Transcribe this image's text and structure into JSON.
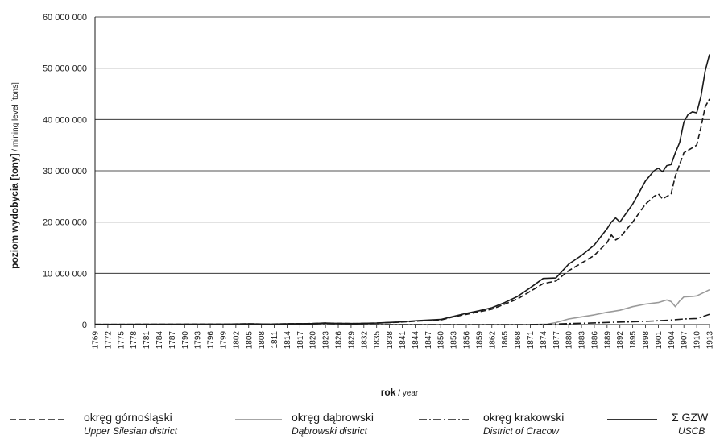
{
  "chart_data": {
    "type": "line",
    "title": "",
    "ylabel_main": "poziom wydobycia [tony]",
    "ylabel_sub": " / mining level [tons]",
    "xlabel_main": "rok",
    "xlabel_sub": " / year",
    "ylim": [
      0,
      60000000
    ],
    "y_ticks": [
      0,
      10000000,
      20000000,
      30000000,
      40000000,
      50000000,
      60000000
    ],
    "y_tick_labels": [
      "0",
      "10 000 000",
      "20 000 000",
      "30 000 000",
      "40 000 000",
      "50 000 000",
      "60 000 000"
    ],
    "x_range": [
      1769,
      1913
    ],
    "x_ticks": [
      1769,
      1772,
      1775,
      1778,
      1781,
      1784,
      1787,
      1790,
      1793,
      1796,
      1799,
      1802,
      1805,
      1808,
      1811,
      1814,
      1817,
      1820,
      1823,
      1826,
      1829,
      1832,
      1835,
      1838,
      1841,
      1844,
      1847,
      1850,
      1853,
      1856,
      1859,
      1862,
      1865,
      1868,
      1871,
      1874,
      1877,
      1880,
      1883,
      1886,
      1889,
      1892,
      1895,
      1898,
      1901,
      1904,
      1907,
      1910,
      1913
    ],
    "grid": "horizontal",
    "legend_position": "bottom",
    "series": [
      {
        "name": "okręg górnośląski",
        "name_en": "Upper Silesian district",
        "style": "dashed",
        "color": "#1a1a1a",
        "points": [
          [
            1769,
            50000
          ],
          [
            1800,
            100000
          ],
          [
            1805,
            150000
          ],
          [
            1810,
            100000
          ],
          [
            1815,
            180000
          ],
          [
            1820,
            200000
          ],
          [
            1823,
            300000
          ],
          [
            1825,
            250000
          ],
          [
            1830,
            200000
          ],
          [
            1835,
            300000
          ],
          [
            1840,
            450000
          ],
          [
            1845,
            700000
          ],
          [
            1850,
            900000
          ],
          [
            1853,
            1500000
          ],
          [
            1856,
            2000000
          ],
          [
            1859,
            2500000
          ],
          [
            1862,
            3000000
          ],
          [
            1865,
            4000000
          ],
          [
            1868,
            5000000
          ],
          [
            1871,
            6500000
          ],
          [
            1874,
            8000000
          ],
          [
            1877,
            8500000
          ],
          [
            1880,
            10500000
          ],
          [
            1883,
            12000000
          ],
          [
            1886,
            13500000
          ],
          [
            1889,
            16000000
          ],
          [
            1890,
            17500000
          ],
          [
            1891,
            16500000
          ],
          [
            1892,
            17000000
          ],
          [
            1895,
            20000000
          ],
          [
            1898,
            23500000
          ],
          [
            1900,
            25000000
          ],
          [
            1901,
            25500000
          ],
          [
            1902,
            24500000
          ],
          [
            1904,
            25500000
          ],
          [
            1905,
            29000000
          ],
          [
            1907,
            33500000
          ],
          [
            1909,
            34500000
          ],
          [
            1910,
            35000000
          ],
          [
            1911,
            38500000
          ],
          [
            1912,
            42500000
          ],
          [
            1913,
            44000000
          ]
        ]
      },
      {
        "name": "okręg dąbrowski",
        "name_en": "Dąbrowski district",
        "style": "solid",
        "color": "#9a9a9a",
        "points": [
          [
            1769,
            0
          ],
          [
            1870,
            0
          ],
          [
            1875,
            100000
          ],
          [
            1877,
            400000
          ],
          [
            1880,
            1100000
          ],
          [
            1883,
            1500000
          ],
          [
            1886,
            1900000
          ],
          [
            1889,
            2400000
          ],
          [
            1892,
            2800000
          ],
          [
            1895,
            3500000
          ],
          [
            1898,
            4000000
          ],
          [
            1901,
            4300000
          ],
          [
            1903,
            4800000
          ],
          [
            1904,
            4500000
          ],
          [
            1905,
            3500000
          ],
          [
            1906,
            4600000
          ],
          [
            1907,
            5400000
          ],
          [
            1909,
            5500000
          ],
          [
            1910,
            5600000
          ],
          [
            1911,
            6000000
          ],
          [
            1913,
            6800000
          ]
        ]
      },
      {
        "name": "okręg krakowski",
        "name_en": "District of Cracow",
        "style": "dashdot",
        "color": "#1a1a1a",
        "points": [
          [
            1769,
            0
          ],
          [
            1870,
            0
          ],
          [
            1875,
            50000
          ],
          [
            1880,
            200000
          ],
          [
            1885,
            300000
          ],
          [
            1890,
            450000
          ],
          [
            1895,
            550000
          ],
          [
            1900,
            700000
          ],
          [
            1904,
            900000
          ],
          [
            1907,
            1100000
          ],
          [
            1910,
            1200000
          ],
          [
            1913,
            2000000
          ]
        ]
      },
      {
        "name": "Σ GZW",
        "name_en": "USCB",
        "style": "solid",
        "color": "#1a1a1a",
        "points": [
          [
            1769,
            50000
          ],
          [
            1800,
            100000
          ],
          [
            1805,
            150000
          ],
          [
            1810,
            100000
          ],
          [
            1815,
            180000
          ],
          [
            1820,
            200000
          ],
          [
            1823,
            300000
          ],
          [
            1825,
            250000
          ],
          [
            1830,
            200000
          ],
          [
            1835,
            300000
          ],
          [
            1840,
            500000
          ],
          [
            1845,
            800000
          ],
          [
            1850,
            1000000
          ],
          [
            1853,
            1600000
          ],
          [
            1856,
            2200000
          ],
          [
            1859,
            2700000
          ],
          [
            1862,
            3300000
          ],
          [
            1865,
            4300000
          ],
          [
            1868,
            5500000
          ],
          [
            1871,
            7200000
          ],
          [
            1874,
            9000000
          ],
          [
            1877,
            9100000
          ],
          [
            1880,
            11800000
          ],
          [
            1883,
            13500000
          ],
          [
            1886,
            15500000
          ],
          [
            1889,
            18700000
          ],
          [
            1890,
            20000000
          ],
          [
            1891,
            20800000
          ],
          [
            1892,
            20000000
          ],
          [
            1895,
            23500000
          ],
          [
            1898,
            28000000
          ],
          [
            1900,
            30000000
          ],
          [
            1901,
            30500000
          ],
          [
            1902,
            29800000
          ],
          [
            1903,
            31000000
          ],
          [
            1904,
            31200000
          ],
          [
            1905,
            33500000
          ],
          [
            1906,
            35500000
          ],
          [
            1907,
            39500000
          ],
          [
            1908,
            41000000
          ],
          [
            1909,
            41500000
          ],
          [
            1910,
            41300000
          ],
          [
            1911,
            44500000
          ],
          [
            1912,
            49500000
          ],
          [
            1913,
            52700000
          ]
        ]
      }
    ]
  }
}
